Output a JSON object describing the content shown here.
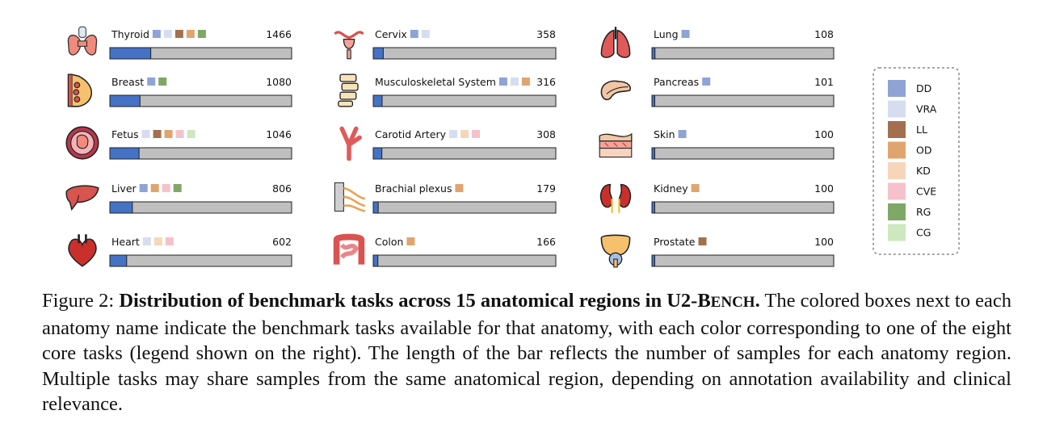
{
  "chart_data": {
    "type": "bar",
    "xmax": 1466,
    "regions": [
      {
        "name": "Thyroid",
        "value": 1466,
        "tasks": [
          "DD",
          "VRA",
          "LL",
          "OD",
          "RG"
        ],
        "icon": "thyroid-icon"
      },
      {
        "name": "Breast",
        "value": 1080,
        "tasks": [
          "DD",
          "RG"
        ],
        "icon": "breast-icon"
      },
      {
        "name": "Fetus",
        "value": 1046,
        "tasks": [
          "VRA",
          "LL",
          "OD",
          "CVE",
          "CG"
        ],
        "icon": "fetus-icon"
      },
      {
        "name": "Liver",
        "value": 806,
        "tasks": [
          "DD",
          "OD",
          "CVE",
          "RG"
        ],
        "icon": "liver-icon"
      },
      {
        "name": "Heart",
        "value": 602,
        "tasks": [
          "VRA",
          "KD",
          "CVE"
        ],
        "icon": "heart-icon"
      },
      {
        "name": "Cervix",
        "value": 358,
        "tasks": [
          "DD",
          "VRA"
        ],
        "icon": "cervix-icon"
      },
      {
        "name": "Musculoskeletal System",
        "value": 316,
        "tasks": [
          "DD",
          "VRA",
          "OD"
        ],
        "icon": "spine-icon"
      },
      {
        "name": "Carotid Artery",
        "value": 308,
        "tasks": [
          "VRA",
          "KD",
          "CVE"
        ],
        "icon": "artery-icon"
      },
      {
        "name": "Brachial plexus",
        "value": 179,
        "tasks": [
          "OD"
        ],
        "icon": "nerve-icon"
      },
      {
        "name": "Colon",
        "value": 166,
        "tasks": [
          "OD"
        ],
        "icon": "colon-icon"
      },
      {
        "name": "Lung",
        "value": 108,
        "tasks": [
          "DD"
        ],
        "icon": "lung-icon"
      },
      {
        "name": "Pancreas",
        "value": 101,
        "tasks": [
          "DD"
        ],
        "icon": "pancreas-icon"
      },
      {
        "name": "Skin",
        "value": 100,
        "tasks": [
          "DD"
        ],
        "icon": "skin-icon"
      },
      {
        "name": "Kidney",
        "value": 100,
        "tasks": [
          "OD"
        ],
        "icon": "kidney-icon"
      },
      {
        "name": "Prostate",
        "value": 100,
        "tasks": [
          "LL"
        ],
        "icon": "prostate-icon"
      }
    ],
    "legend": [
      {
        "task": "DD",
        "color": "#8fa3d4"
      },
      {
        "task": "VRA",
        "color": "#d6ddf0"
      },
      {
        "task": "LL",
        "color": "#a3704f"
      },
      {
        "task": "OD",
        "color": "#e0a56f"
      },
      {
        "task": "KD",
        "color": "#f6d6bb"
      },
      {
        "task": "CVE",
        "color": "#f5c2cb"
      },
      {
        "task": "RG",
        "color": "#7fa866"
      },
      {
        "task": "CG",
        "color": "#cde7bf"
      }
    ],
    "legend_position": "right",
    "bar_fill_color": "#4472c4",
    "bar_track_color": "#bfbfbf"
  },
  "caption": {
    "label": "Figure 2:",
    "bold_pre": "Distribution of benchmark tasks across 15 anatomical regions in U2-",
    "bold_sc_big": "B",
    "bold_sc_small": "ENCH",
    "bold_post": ".",
    "body": "The colored boxes next to each anatomy name indicate the benchmark tasks available for that anatomy, with each color corresponding to one of the eight core tasks (legend shown on the right). The length of the bar reflects the number of samples for each anatomy region. Multiple tasks may share samples from the same anatomical region, depending on annotation availability and clinical relevance."
  }
}
